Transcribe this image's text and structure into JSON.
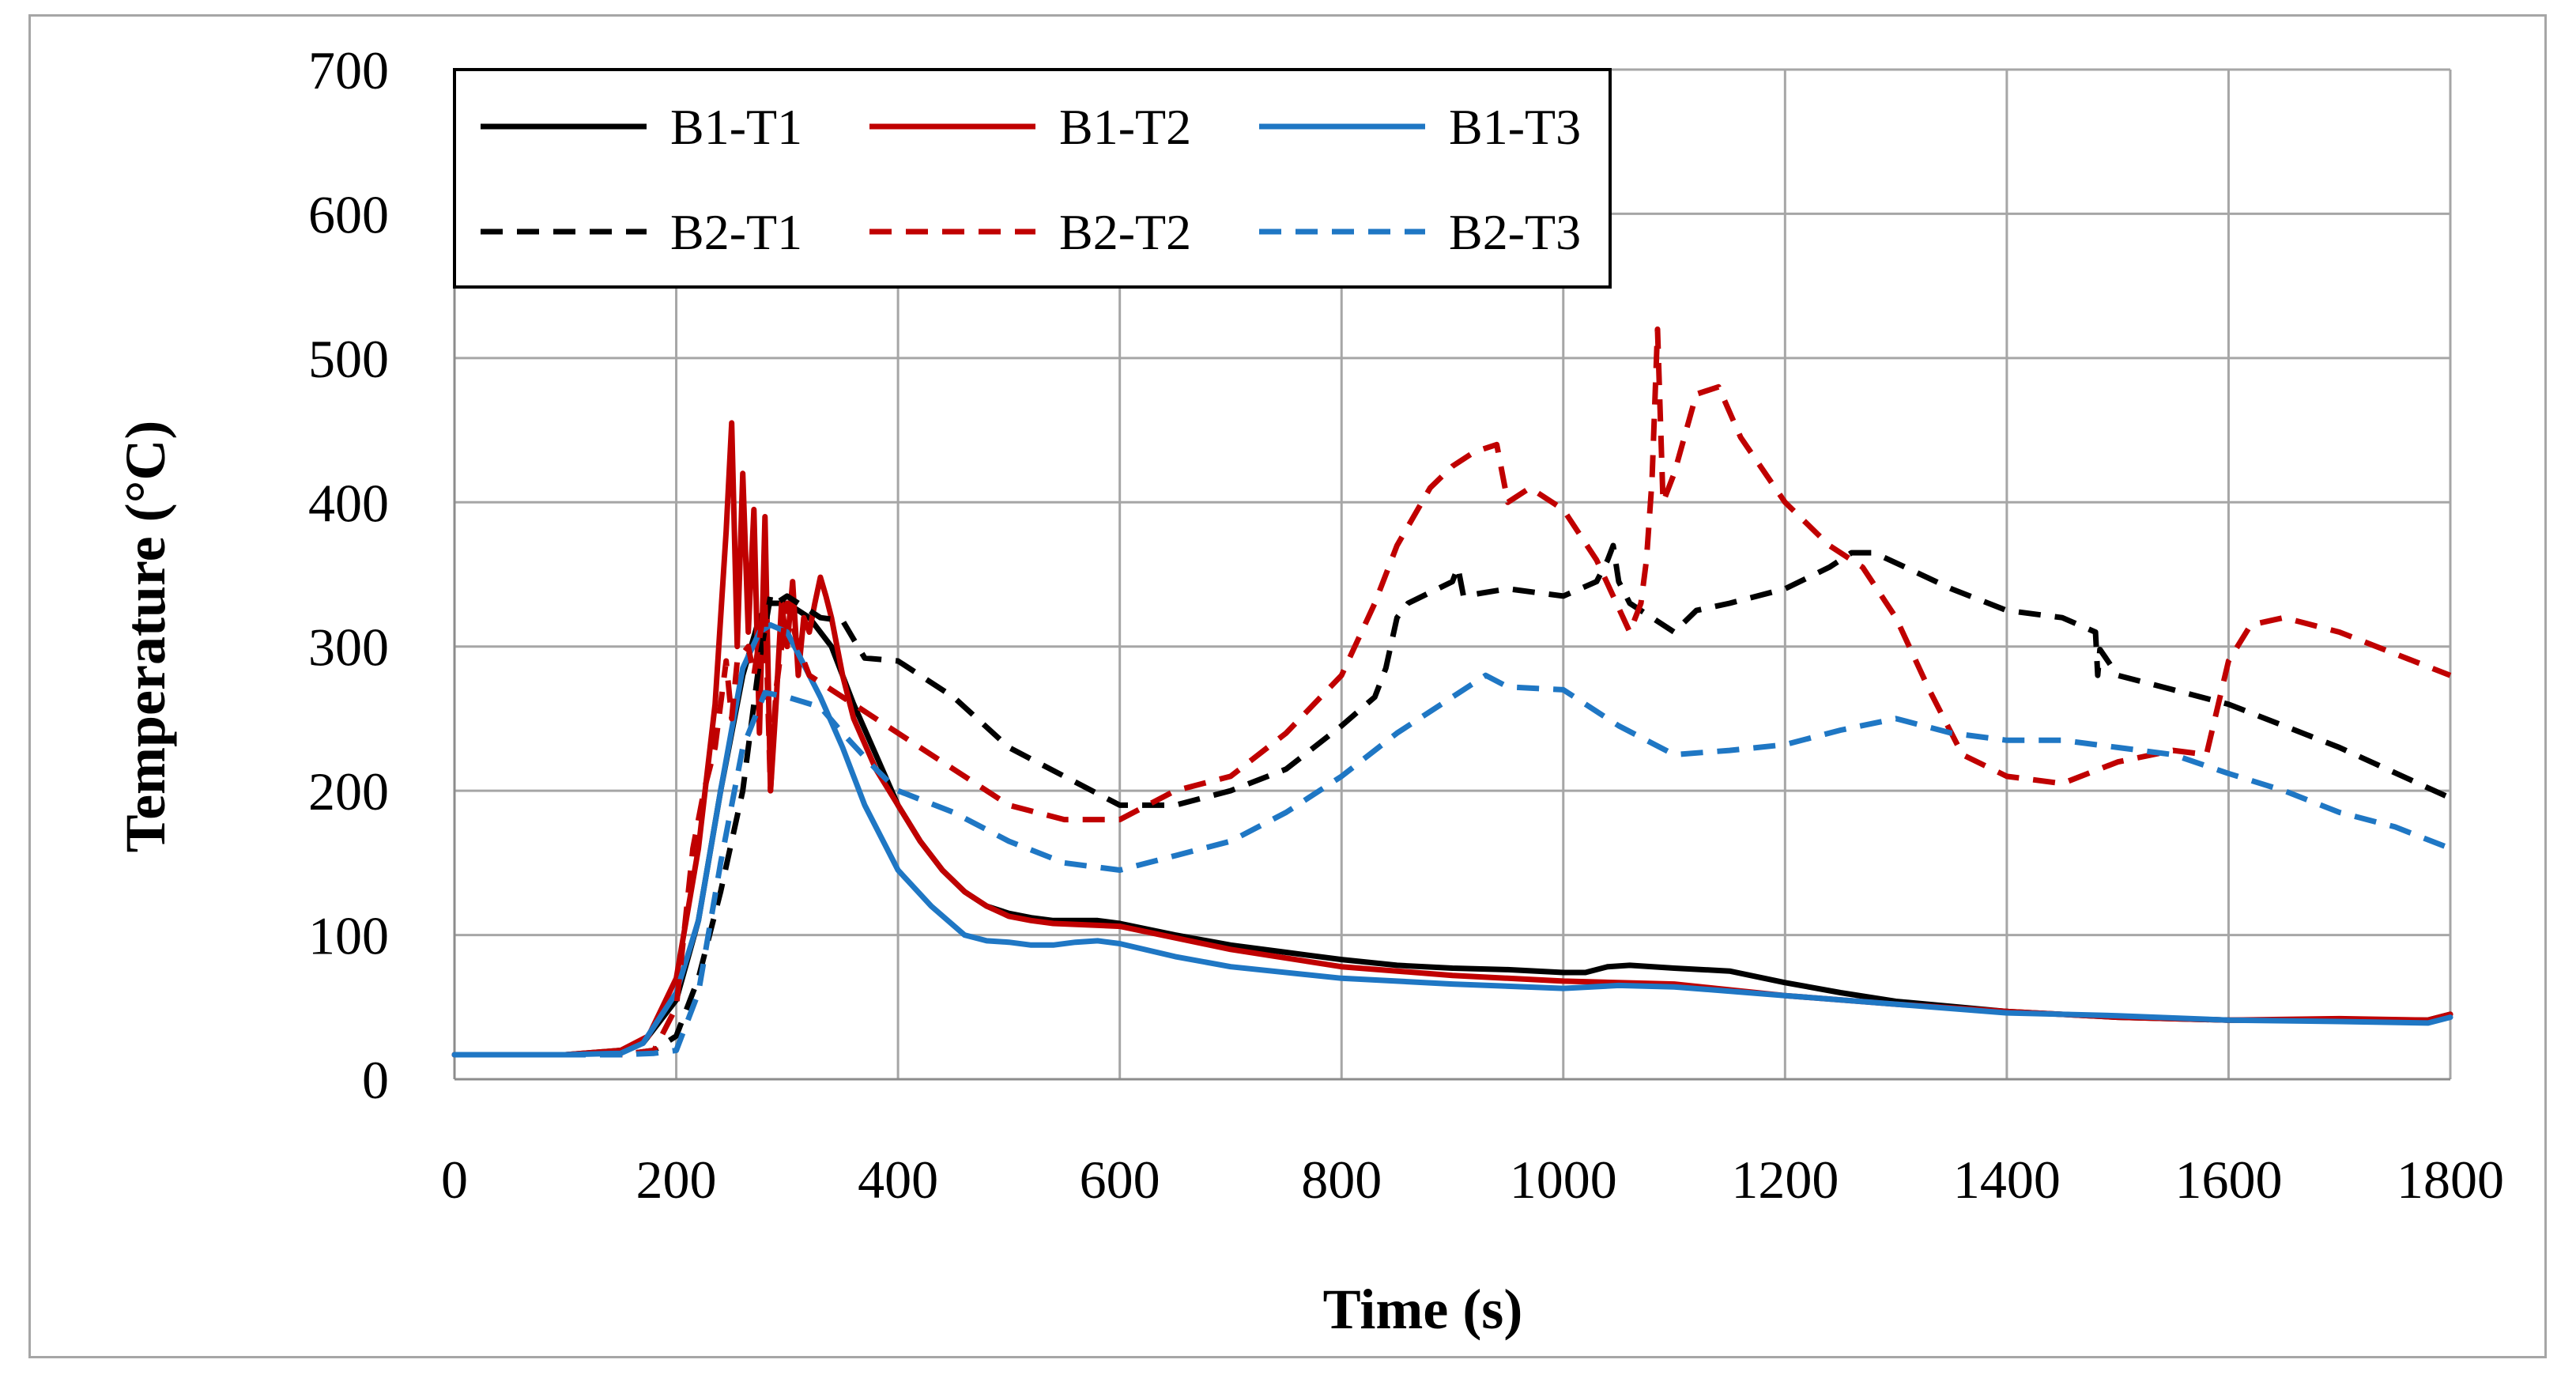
{
  "chart_data": {
    "type": "line",
    "title": "",
    "xlabel": "Time (s)",
    "ylabel": "Temperature (°C)",
    "xlim": [
      0,
      1800
    ],
    "ylim": [
      0,
      700
    ],
    "xticks": [
      0,
      200,
      400,
      600,
      800,
      1000,
      1200,
      1400,
      1600,
      1800
    ],
    "yticks": [
      0,
      100,
      200,
      300,
      400,
      500,
      600,
      700
    ],
    "grid": true,
    "legend_position": "top-left",
    "series": [
      {
        "name": "B1-T1",
        "color": "#000000",
        "dash": "solid",
        "x": [
          0,
          100,
          150,
          170,
          200,
          220,
          240,
          260,
          275,
          285,
          300,
          320,
          340,
          360,
          380,
          400,
          420,
          440,
          460,
          480,
          500,
          520,
          540,
          560,
          580,
          600,
          650,
          700,
          750,
          800,
          850,
          900,
          950,
          1000,
          1020,
          1040,
          1060,
          1100,
          1150,
          1200,
          1250,
          1300,
          1400,
          1500,
          1600,
          1700,
          1780,
          1800
        ],
        "y": [
          17,
          17,
          20,
          25,
          55,
          110,
          200,
          280,
          320,
          330,
          330,
          320,
          300,
          260,
          225,
          190,
          165,
          145,
          130,
          120,
          115,
          112,
          110,
          110,
          110,
          108,
          100,
          93,
          88,
          83,
          79,
          77,
          76,
          74,
          74,
          78,
          79,
          77,
          75,
          67,
          60,
          54,
          47,
          43,
          41,
          41,
          41,
          45
        ]
      },
      {
        "name": "B1-T2",
        "color": "#c00000",
        "dash": "solid",
        "x": [
          0,
          100,
          150,
          175,
          200,
          220,
          235,
          245,
          250,
          255,
          260,
          265,
          270,
          275,
          280,
          285,
          290,
          295,
          300,
          305,
          310,
          315,
          320,
          325,
          330,
          335,
          340,
          350,
          360,
          380,
          400,
          420,
          440,
          460,
          480,
          500,
          520,
          540,
          600,
          650,
          700,
          800,
          900,
          1000,
          1100,
          1200,
          1300,
          1400,
          1500,
          1600,
          1700,
          1780,
          1800
        ],
        "y": [
          17,
          17,
          20,
          30,
          70,
          160,
          260,
          380,
          455,
          300,
          420,
          310,
          395,
          240,
          390,
          200,
          260,
          330,
          300,
          345,
          280,
          320,
          310,
          330,
          348,
          335,
          320,
          280,
          250,
          215,
          190,
          165,
          145,
          130,
          120,
          113,
          110,
          108,
          106,
          98,
          90,
          78,
          72,
          68,
          66,
          58,
          52,
          47,
          43,
          41,
          42,
          41,
          45
        ]
      },
      {
        "name": "B1-T3",
        "color": "#1f77c4",
        "dash": "solid",
        "x": [
          0,
          100,
          150,
          170,
          200,
          220,
          240,
          260,
          275,
          285,
          300,
          310,
          330,
          350,
          370,
          400,
          430,
          460,
          480,
          500,
          520,
          540,
          560,
          580,
          600,
          650,
          700,
          800,
          900,
          1000,
          1050,
          1100,
          1200,
          1300,
          1400,
          1500,
          1600,
          1700,
          1780,
          1800
        ],
        "y": [
          17,
          17,
          18,
          25,
          60,
          110,
          200,
          285,
          310,
          315,
          310,
          295,
          265,
          230,
          190,
          145,
          120,
          100,
          96,
          95,
          93,
          93,
          95,
          96,
          94,
          85,
          78,
          70,
          66,
          63,
          65,
          64,
          58,
          52,
          46,
          44,
          41,
          40,
          39,
          43
        ]
      },
      {
        "name": "B2-T1",
        "color": "#000000",
        "dash": "dashed",
        "x": [
          0,
          150,
          180,
          200,
          220,
          240,
          260,
          275,
          285,
          290,
          300,
          310,
          330,
          350,
          360,
          370,
          400,
          450,
          500,
          550,
          600,
          650,
          700,
          750,
          800,
          830,
          840,
          850,
          860,
          900,
          905,
          910,
          950,
          1000,
          1030,
          1040,
          1045,
          1050,
          1060,
          1080,
          1100,
          1120,
          1150,
          1200,
          1240,
          1260,
          1280,
          1300,
          1350,
          1400,
          1450,
          1480,
          1482,
          1484,
          1500,
          1550,
          1600,
          1700,
          1800
        ],
        "y": [
          17,
          17,
          20,
          30,
          70,
          130,
          200,
          290,
          335,
          330,
          335,
          330,
          320,
          318,
          305,
          292,
          290,
          265,
          230,
          210,
          190,
          190,
          200,
          215,
          245,
          265,
          285,
          320,
          330,
          345,
          355,
          335,
          340,
          335,
          345,
          360,
          370,
          345,
          330,
          320,
          310,
          325,
          330,
          340,
          355,
          365,
          365,
          358,
          340,
          325,
          320,
          310,
          280,
          298,
          280,
          270,
          260,
          230,
          195
        ]
      },
      {
        "name": "B2-T2",
        "color": "#c00000",
        "dash": "dashed",
        "x": [
          0,
          150,
          180,
          200,
          215,
          225,
          235,
          245,
          250,
          255,
          265,
          270,
          280,
          285,
          290,
          300,
          310,
          320,
          340,
          370,
          400,
          450,
          500,
          550,
          600,
          650,
          700,
          750,
          800,
          830,
          850,
          880,
          900,
          920,
          940,
          950,
          970,
          1000,
          1030,
          1060,
          1070,
          1075,
          1080,
          1085,
          1090,
          1100,
          1120,
          1140,
          1160,
          1200,
          1240,
          1270,
          1300,
          1330,
          1360,
          1400,
          1450,
          1500,
          1550,
          1580,
          1600,
          1620,
          1650,
          1700,
          1800
        ],
        "y": [
          17,
          17,
          20,
          50,
          160,
          200,
          230,
          290,
          250,
          290,
          300,
          280,
          330,
          200,
          270,
          330,
          300,
          280,
          270,
          255,
          240,
          215,
          190,
          180,
          180,
          200,
          210,
          240,
          280,
          330,
          370,
          410,
          425,
          435,
          440,
          400,
          410,
          395,
          360,
          310,
          330,
          360,
          415,
          520,
          400,
          420,
          475,
          480,
          445,
          400,
          370,
          355,
          320,
          270,
          225,
          210,
          205,
          220,
          228,
          225,
          290,
          315,
          320,
          310,
          280
        ]
      },
      {
        "name": "B2-T3",
        "color": "#1f77c4",
        "dash": "dashed",
        "x": [
          0,
          150,
          180,
          200,
          220,
          240,
          260,
          280,
          300,
          330,
          350,
          380,
          400,
          450,
          500,
          550,
          600,
          650,
          700,
          750,
          800,
          850,
          900,
          930,
          950,
          1000,
          1050,
          1100,
          1150,
          1200,
          1250,
          1300,
          1350,
          1400,
          1450,
          1500,
          1550,
          1600,
          1650,
          1700,
          1750,
          1800
        ],
        "y": [
          17,
          17,
          18,
          20,
          60,
          150,
          230,
          268,
          265,
          258,
          240,
          215,
          200,
          185,
          165,
          150,
          145,
          155,
          165,
          185,
          210,
          240,
          265,
          280,
          272,
          270,
          245,
          225,
          228,
          232,
          242,
          250,
          240,
          235,
          235,
          230,
          225,
          212,
          200,
          185,
          175,
          160
        ]
      }
    ]
  }
}
